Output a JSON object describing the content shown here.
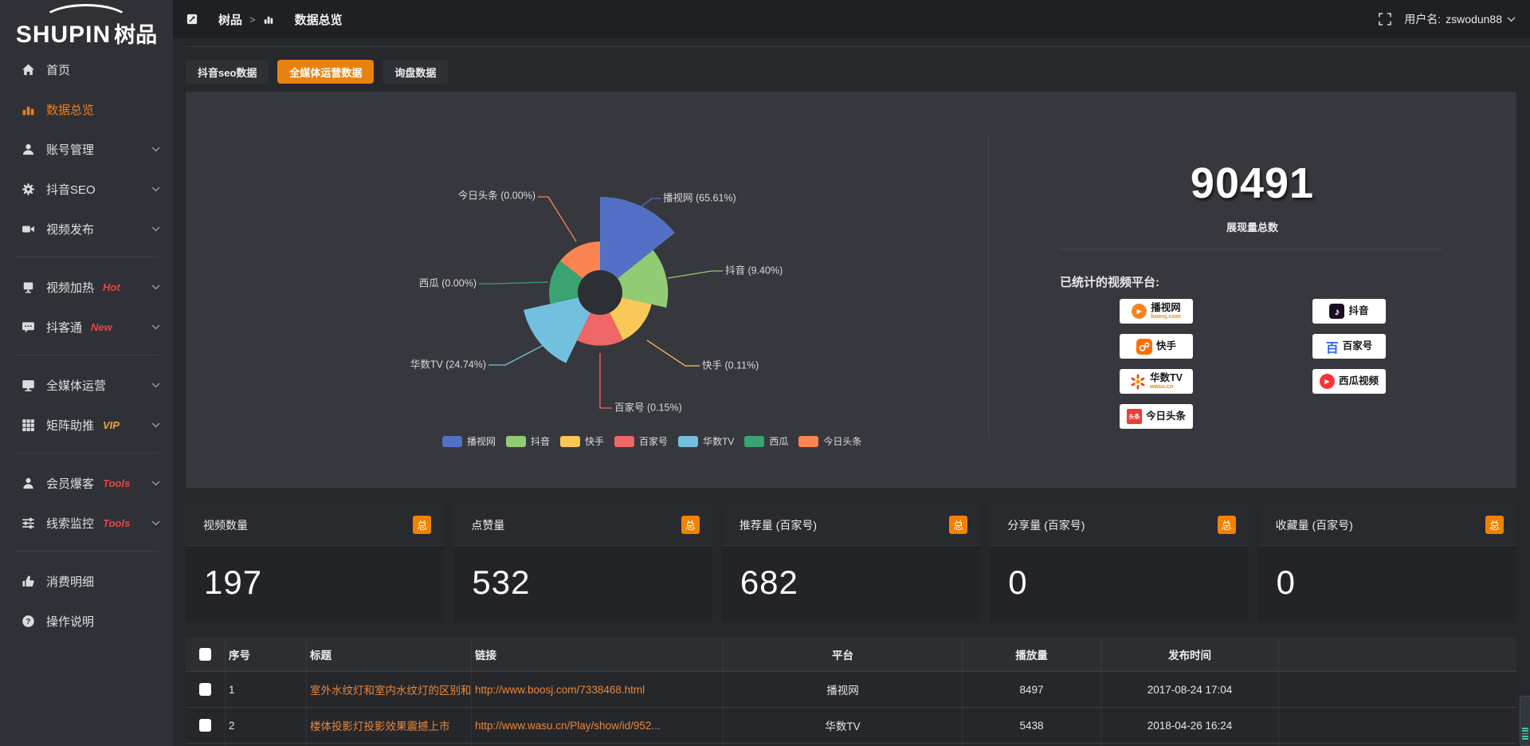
{
  "app": {
    "logo_en": "SHUPIN",
    "logo_cn": "树品"
  },
  "topbar": {
    "breadcrumb": [
      {
        "label": "树品"
      },
      {
        "label": "数据总览"
      }
    ],
    "separator": ">",
    "username_label": "用户名:",
    "username": "zswodun88"
  },
  "sidebar": {
    "items": [
      {
        "id": "home",
        "icon": "home",
        "label": "首页"
      },
      {
        "id": "data-overview",
        "icon": "chart",
        "label": "数据总览",
        "active": true
      },
      {
        "id": "account-management",
        "icon": "user",
        "label": "账号管理",
        "chevron": true
      },
      {
        "id": "douyin-seo",
        "icon": "gear",
        "label": "抖音SEO",
        "chevron": true
      },
      {
        "id": "video-publish",
        "icon": "videocam",
        "label": "视频发布",
        "chevron": true
      },
      {
        "divider": true
      },
      {
        "id": "video-heating",
        "icon": "monitor-sm",
        "label": "视频加热",
        "badge": "Hot",
        "badge_color": "#e64545",
        "chevron": true
      },
      {
        "id": "douketong",
        "icon": "chat",
        "label": "抖客通",
        "badge": "New",
        "badge_color": "#e64545",
        "chevron": true
      },
      {
        "divider": true
      },
      {
        "id": "omnimedia-operation",
        "icon": "monitor",
        "label": "全媒体运营",
        "chevron": true
      },
      {
        "id": "matrix-boost",
        "icon": "grid",
        "label": "矩阵助推",
        "badge": "VIP",
        "badge_color": "#efa23c",
        "chevron": true
      },
      {
        "divider": true
      },
      {
        "id": "member-promo",
        "icon": "person",
        "label": "会员爆客",
        "badge": "Tools",
        "badge_color": "#e64545",
        "chevron": true
      },
      {
        "id": "lead-monitor",
        "icon": "sliders",
        "label": "线索监控",
        "badge": "Tools",
        "badge_color": "#e64545",
        "chevron": true
      },
      {
        "divider": true
      },
      {
        "id": "consumption-detail",
        "icon": "thumb",
        "label": "消费明细"
      },
      {
        "id": "operation-guide",
        "icon": "question",
        "label": "操作说明"
      }
    ]
  },
  "tabs": [
    {
      "id": "douyin-seo-data",
      "label": "抖音seo数据",
      "active": false
    },
    {
      "id": "omnimedia-operation-data",
      "label": "全媒体运营数据",
      "active": true
    },
    {
      "id": "inquiry-data",
      "label": "询盘数据",
      "active": false
    }
  ],
  "chart_data": {
    "type": "pie",
    "variant": "nightingale-rose",
    "unit": "%",
    "legend_position": "bottom",
    "items": [
      {
        "id": "boosj",
        "name": "播视网",
        "value": 65.61,
        "color": "#5470c6"
      },
      {
        "id": "douyin",
        "name": "抖音",
        "value": 9.4,
        "color": "#91cc75"
      },
      {
        "id": "kuaishou",
        "name": "快手",
        "value": 0.11,
        "color": "#fac858"
      },
      {
        "id": "baijiahao",
        "name": "百家号",
        "value": 0.15,
        "color": "#ee6666"
      },
      {
        "id": "wasu-tv",
        "name": "华数TV",
        "value": 24.74,
        "color": "#73c0de"
      },
      {
        "id": "xigua",
        "name": "西瓜",
        "value": 0.0,
        "color": "#3ba272"
      },
      {
        "id": "toutiao",
        "name": "今日头条",
        "value": 0.0,
        "color": "#fc8452"
      }
    ]
  },
  "summary": {
    "total": "90491",
    "total_label": "展现量总数",
    "platforms_label": "已统计的视频平台:",
    "platform_columns": [
      [
        {
          "id": "boosj",
          "name": "播视网",
          "sub": "boosj.com"
        },
        {
          "id": "kuaishou",
          "name": "快手"
        },
        {
          "id": "wasu",
          "name": "华数TV",
          "sub": "wasu.cn"
        },
        {
          "id": "toutiao",
          "name": "今日头条"
        }
      ],
      [
        {
          "id": "douyin",
          "name": "抖音"
        },
        {
          "id": "baijiahao",
          "name": "百家号"
        },
        {
          "id": "xigua",
          "name": "西瓜视频"
        }
      ]
    ]
  },
  "stat_cards": [
    {
      "title": "视频数量",
      "badge": "总",
      "value": "197"
    },
    {
      "title": "点赞量",
      "badge": "总",
      "value": "532"
    },
    {
      "title": "推荐量 (百家号)",
      "badge": "总",
      "value": "682"
    },
    {
      "title": "分享量 (百家号)",
      "badge": "总",
      "value": "0"
    },
    {
      "title": "收藏量 (百家号)",
      "badge": "总",
      "value": "0"
    }
  ],
  "table": {
    "headers": {
      "seq": "序号",
      "title": "标题",
      "link": "链接",
      "platform": "平台",
      "views": "播放量",
      "time": "发布时间"
    },
    "rows": [
      {
        "seq": "1",
        "title": "室外水纹灯和室内水纹灯的区别和简介",
        "link": "http://www.boosj.com/7338468.html",
        "platform": "播视网",
        "views": "8497",
        "time": "2017-08-24 17:04"
      },
      {
        "seq": "2",
        "title": "楼体投影灯投影效果震撼上市",
        "link": "http://www.wasu.cn/Play/show/id/952...",
        "platform": "华数TV",
        "views": "5438",
        "time": "2018-04-26 16:24"
      }
    ]
  },
  "accent": "#e8820e"
}
